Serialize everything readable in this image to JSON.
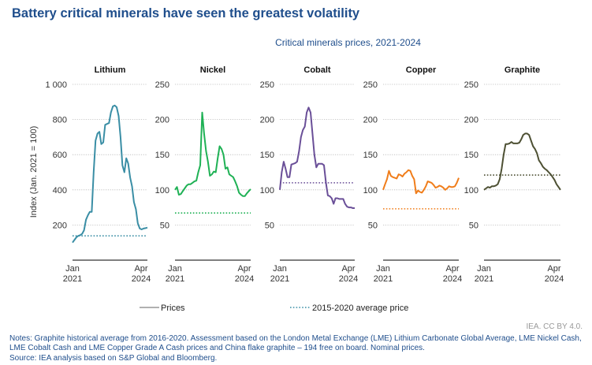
{
  "title": "Battery critical minerals have seen the greatest volatility",
  "subtitle": "Critical minerals prices, 2021-2024",
  "credit": "IEA. CC BY 4.0.",
  "notes": [
    "Notes: Graphite historical average from 2016-2020. Assessment based on the London Metal Exchange (LME) Lithium Carbonate Global Average, LME Nickel Cash, LME Cobalt Cash and LME Copper Grade A Cash prices and China flake graphite – 194 free on board. Nominal prices.",
    "Source: IEA analysis based on S&P Global and Bloomberg."
  ],
  "chart_data": {
    "type": "line",
    "ylabel": "Index (Jan. 2021 = 100)",
    "x_start": "Jan 2021",
    "x_end": "Apr 2024",
    "x_tick_labels": [
      [
        "Jan",
        "2021"
      ],
      [
        "Apr",
        "2024"
      ]
    ],
    "legend": {
      "placement": "bottom",
      "items": [
        {
          "label": "Prices",
          "style": "solid",
          "color": "#b0b0b0"
        },
        {
          "label": "2015-2020 average price",
          "style": "dotted",
          "color": "#3a8ea5"
        }
      ]
    },
    "grid": true,
    "panels": [
      {
        "name": "Lithium",
        "color": "#3a8ea5",
        "ylim": [
          0,
          1000
        ],
        "yticks": [
          200,
          400,
          600,
          800,
          1000
        ],
        "ytick_labels": [
          "200",
          "400",
          "600",
          "800",
          "1 000"
        ],
        "average": 138,
        "values": [
          100,
          115,
          130,
          138,
          142,
          150,
          170,
          230,
          255,
          275,
          275,
          500,
          680,
          720,
          730,
          660,
          670,
          770,
          775,
          780,
          840,
          875,
          880,
          870,
          820,
          700,
          540,
          500,
          580,
          550,
          470,
          420,
          330,
          290,
          210,
          180,
          175,
          180,
          182,
          185
        ]
      },
      {
        "name": "Nickel",
        "color": "#1fb155",
        "ylim": [
          0,
          250
        ],
        "yticks": [
          50,
          100,
          150,
          200,
          250
        ],
        "ytick_labels": [
          "50",
          "100",
          "150",
          "200",
          "250"
        ],
        "average": 67,
        "values": [
          100,
          104,
          93,
          94,
          98,
          102,
          106,
          108,
          108,
          110,
          112,
          113,
          125,
          135,
          210,
          180,
          155,
          140,
          120,
          122,
          126,
          125,
          145,
          162,
          158,
          150,
          130,
          132,
          122,
          120,
          118,
          112,
          105,
          96,
          93,
          91,
          91,
          95,
          98,
          101
        ]
      },
      {
        "name": "Cobalt",
        "color": "#6a4f98",
        "ylim": [
          0,
          250
        ],
        "yticks": [
          50,
          100,
          150,
          200,
          250
        ],
        "ytick_labels": [
          "50",
          "100",
          "150",
          "200",
          "250"
        ],
        "average": 110,
        "values": [
          100,
          125,
          140,
          130,
          118,
          118,
          136,
          137,
          138,
          140,
          155,
          175,
          185,
          190,
          210,
          217,
          210,
          180,
          150,
          132,
          137,
          137,
          137,
          135,
          110,
          92,
          91,
          88,
          80,
          88,
          88,
          87,
          87,
          87,
          80,
          76,
          75,
          75,
          74,
          74
        ]
      },
      {
        "name": "Copper",
        "color": "#f07d1a",
        "ylim": [
          0,
          250
        ],
        "yticks": [
          50,
          100,
          150,
          200,
          250
        ],
        "ytick_labels": [
          "50",
          "100",
          "150",
          "200",
          "250"
        ],
        "average": 73,
        "values": [
          100,
          108,
          115,
          127,
          120,
          118,
          117,
          116,
          122,
          121,
          119,
          123,
          125,
          128,
          127,
          120,
          115,
          95,
          99,
          97,
          96,
          100,
          105,
          112,
          111,
          110,
          107,
          103,
          104,
          106,
          105,
          103,
          100,
          102,
          105,
          104,
          104,
          105,
          110,
          117
        ]
      },
      {
        "name": "Graphite",
        "color": "#4d5033",
        "ylim": [
          0,
          250
        ],
        "yticks": [
          50,
          100,
          150,
          200,
          250
        ],
        "ytick_labels": [
          "50",
          "100",
          "150",
          "200",
          "250"
        ],
        "average": 121,
        "values": [
          100,
          102,
          104,
          103,
          105,
          105,
          106,
          108,
          115,
          130,
          150,
          165,
          165,
          166,
          168,
          166,
          166,
          166,
          167,
          172,
          178,
          180,
          180,
          178,
          170,
          162,
          158,
          152,
          142,
          138,
          133,
          130,
          128,
          125,
          122,
          118,
          114,
          108,
          104,
          100
        ]
      }
    ]
  }
}
